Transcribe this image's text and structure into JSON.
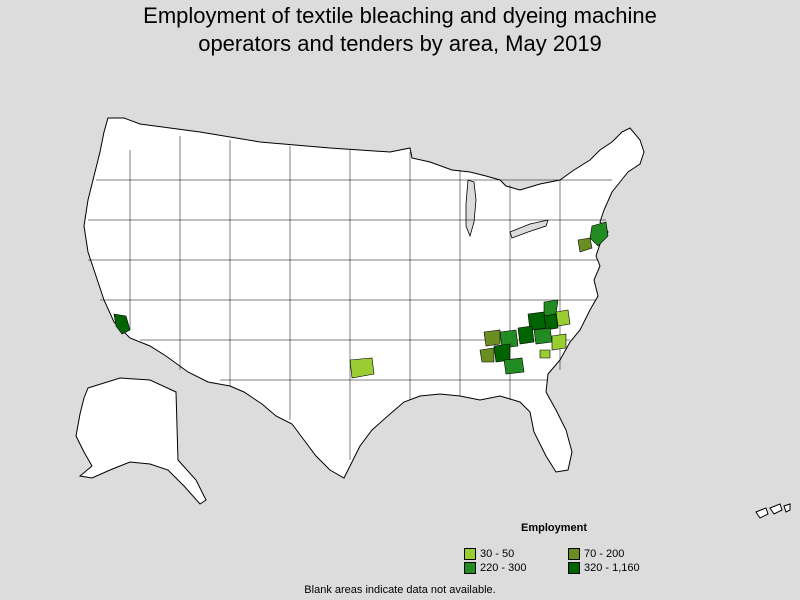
{
  "map": {
    "title_line1": "Employment of textile bleaching and dyeing machine",
    "title_line2": "operators and tenders by area, May 2019",
    "note": "Blank areas indicate data not available."
  },
  "legend": {
    "title": "Employment",
    "items": [
      {
        "label": "30 - 50",
        "color": "#9acd32"
      },
      {
        "label": "70 - 200",
        "color": "#6b8e23"
      },
      {
        "label": "220 - 300",
        "color": "#228b22"
      },
      {
        "label": "320 - 1,160",
        "color": "#006400"
      }
    ]
  },
  "colors": {
    "background": "#dcdcdc",
    "land": "#ffffff",
    "border": "#000000"
  }
}
